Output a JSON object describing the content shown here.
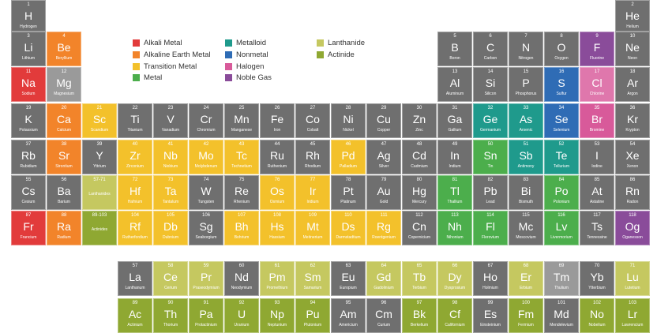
{
  "colors": {
    "alkali": "#e23b3b",
    "alkaline": "#f2842a",
    "transition": "#f3c12b",
    "metal": "#4cae4c",
    "metalloid": "#1f9a8c",
    "nonmetal": "#2f6cb5",
    "halogen": "#d85a9a",
    "noble": "#8a4c9a",
    "lanthanide": "#c5c860",
    "actinide": "#8fa832",
    "unknown": "#6f6f6f",
    "faded": "#9a9a9a"
  },
  "legend": [
    {
      "label": "Alkali Metal",
      "color": "alkali"
    },
    {
      "label": "Alkaline Earth Metal",
      "color": "alkaline"
    },
    {
      "label": "Transition Metal",
      "color": "transition"
    },
    {
      "label": "Metal",
      "color": "metal"
    },
    {
      "label": "Metalloid",
      "color": "metalloid"
    },
    {
      "label": "Nonmetal",
      "color": "nonmetal"
    },
    {
      "label": "Halogen",
      "color": "halogen"
    },
    {
      "label": "Noble Gas",
      "color": "noble"
    },
    {
      "label": "Lanthanide",
      "color": "lanthanide"
    },
    {
      "label": "Actinide",
      "color": "actinide"
    }
  ],
  "elements": [
    {
      "n": "1",
      "s": "H",
      "name": "Hydrogen",
      "c": "unknown",
      "r": 1,
      "col": 1
    },
    {
      "n": "2",
      "s": "He",
      "name": "Helium",
      "c": "unknown",
      "r": 1,
      "col": 18
    },
    {
      "n": "3",
      "s": "Li",
      "name": "Lithium",
      "c": "unknown",
      "r": 2,
      "col": 1
    },
    {
      "n": "4",
      "s": "Be",
      "name": "Beryllium",
      "c": "alkaline",
      "r": 2,
      "col": 2
    },
    {
      "n": "5",
      "s": "B",
      "name": "Boron",
      "c": "unknown",
      "r": 2,
      "col": 13
    },
    {
      "n": "6",
      "s": "C",
      "name": "Carbon",
      "c": "unknown",
      "r": 2,
      "col": 14
    },
    {
      "n": "7",
      "s": "N",
      "name": "Nitrogen",
      "c": "unknown",
      "r": 2,
      "col": 15
    },
    {
      "n": "8",
      "s": "O",
      "name": "Oxygen",
      "c": "unknown",
      "r": 2,
      "col": 16
    },
    {
      "n": "9",
      "s": "F",
      "name": "Fluorine",
      "c": "noble",
      "r": 2,
      "col": 17
    },
    {
      "n": "10",
      "s": "Ne",
      "name": "Neon",
      "c": "unknown",
      "r": 2,
      "col": 18
    },
    {
      "n": "11",
      "s": "Na",
      "name": "Sodium",
      "c": "alkali",
      "r": 3,
      "col": 1
    },
    {
      "n": "12",
      "s": "Mg",
      "name": "Magnesium",
      "c": "faded",
      "r": 3,
      "col": 2
    },
    {
      "n": "13",
      "s": "Al",
      "name": "Aluminum",
      "c": "unknown",
      "r": 3,
      "col": 13
    },
    {
      "n": "14",
      "s": "Si",
      "name": "Silicon",
      "c": "unknown",
      "r": 3,
      "col": 14
    },
    {
      "n": "15",
      "s": "P",
      "name": "Phosphorus",
      "c": "unknown",
      "r": 3,
      "col": 15
    },
    {
      "n": "16",
      "s": "S",
      "name": "Sulfur",
      "c": "nonmetal",
      "r": 3,
      "col": 16
    },
    {
      "n": "17",
      "s": "Cl",
      "name": "Chlorine",
      "c": "halogen",
      "r": 3,
      "col": 17,
      "faded": true
    },
    {
      "n": "18",
      "s": "Ar",
      "name": "Argon",
      "c": "unknown",
      "r": 3,
      "col": 18
    },
    {
      "n": "19",
      "s": "K",
      "name": "Potassium",
      "c": "unknown",
      "r": 4,
      "col": 1
    },
    {
      "n": "20",
      "s": "Ca",
      "name": "Calcium",
      "c": "alkaline",
      "r": 4,
      "col": 2
    },
    {
      "n": "21",
      "s": "Sc",
      "name": "Scandium",
      "c": "transition",
      "r": 4,
      "col": 3
    },
    {
      "n": "22",
      "s": "Ti",
      "name": "Titanium",
      "c": "unknown",
      "r": 4,
      "col": 4
    },
    {
      "n": "23",
      "s": "V",
      "name": "Vanadium",
      "c": "unknown",
      "r": 4,
      "col": 5
    },
    {
      "n": "24",
      "s": "Cr",
      "name": "Chromium",
      "c": "unknown",
      "r": 4,
      "col": 6
    },
    {
      "n": "25",
      "s": "Mn",
      "name": "Manganese",
      "c": "unknown",
      "r": 4,
      "col": 7
    },
    {
      "n": "26",
      "s": "Fe",
      "name": "Iron",
      "c": "unknown",
      "r": 4,
      "col": 8
    },
    {
      "n": "27",
      "s": "Co",
      "name": "Cobalt",
      "c": "unknown",
      "r": 4,
      "col": 9
    },
    {
      "n": "28",
      "s": "Ni",
      "name": "Nickel",
      "c": "unknown",
      "r": 4,
      "col": 10
    },
    {
      "n": "29",
      "s": "Cu",
      "name": "Copper",
      "c": "unknown",
      "r": 4,
      "col": 11
    },
    {
      "n": "30",
      "s": "Zn",
      "name": "Zinc",
      "c": "unknown",
      "r": 4,
      "col": 12
    },
    {
      "n": "31",
      "s": "Ga",
      "name": "Gallium",
      "c": "unknown",
      "r": 4,
      "col": 13
    },
    {
      "n": "32",
      "s": "Ge",
      "name": "Germanium",
      "c": "metalloid",
      "r": 4,
      "col": 14
    },
    {
      "n": "33",
      "s": "As",
      "name": "Arsenic",
      "c": "metalloid",
      "r": 4,
      "col": 15
    },
    {
      "n": "34",
      "s": "Se",
      "name": "Selenium",
      "c": "nonmetal",
      "r": 4,
      "col": 16
    },
    {
      "n": "35",
      "s": "Br",
      "name": "Bromine",
      "c": "halogen",
      "r": 4,
      "col": 17
    },
    {
      "n": "36",
      "s": "Kr",
      "name": "Krypton",
      "c": "unknown",
      "r": 4,
      "col": 18
    },
    {
      "n": "37",
      "s": "Rb",
      "name": "Rubidium",
      "c": "unknown",
      "r": 5,
      "col": 1
    },
    {
      "n": "38",
      "s": "Sr",
      "name": "Strontium",
      "c": "alkaline",
      "r": 5,
      "col": 2
    },
    {
      "n": "39",
      "s": "Y",
      "name": "Yttrium",
      "c": "unknown",
      "r": 5,
      "col": 3
    },
    {
      "n": "40",
      "s": "Zr",
      "name": "Zirconium",
      "c": "transition",
      "r": 5,
      "col": 4
    },
    {
      "n": "41",
      "s": "Nb",
      "name": "Niobium",
      "c": "transition",
      "r": 5,
      "col": 5
    },
    {
      "n": "42",
      "s": "Mo",
      "name": "Molybdenum",
      "c": "transition",
      "r": 5,
      "col": 6
    },
    {
      "n": "43",
      "s": "Tc",
      "name": "Technetium",
      "c": "transition",
      "r": 5,
      "col": 7
    },
    {
      "n": "44",
      "s": "Ru",
      "name": "Ruthenium",
      "c": "unknown",
      "r": 5,
      "col": 8
    },
    {
      "n": "45",
      "s": "Rh",
      "name": "Rhodium",
      "c": "unknown",
      "r": 5,
      "col": 9
    },
    {
      "n": "46",
      "s": "Pd",
      "name": "Palladium",
      "c": "transition",
      "r": 5,
      "col": 10
    },
    {
      "n": "47",
      "s": "Ag",
      "name": "Silver",
      "c": "unknown",
      "r": 5,
      "col": 11
    },
    {
      "n": "48",
      "s": "Cd",
      "name": "Cadmium",
      "c": "unknown",
      "r": 5,
      "col": 12
    },
    {
      "n": "49",
      "s": "In",
      "name": "Indium",
      "c": "unknown",
      "r": 5,
      "col": 13
    },
    {
      "n": "50",
      "s": "Sn",
      "name": "Tin",
      "c": "metal",
      "r": 5,
      "col": 14
    },
    {
      "n": "51",
      "s": "Sb",
      "name": "Antimony",
      "c": "metalloid",
      "r": 5,
      "col": 15
    },
    {
      "n": "52",
      "s": "Te",
      "name": "Tellurium",
      "c": "metalloid",
      "r": 5,
      "col": 16
    },
    {
      "n": "53",
      "s": "I",
      "name": "Iodine",
      "c": "unknown",
      "r": 5,
      "col": 17
    },
    {
      "n": "54",
      "s": "Xe",
      "name": "Xenon",
      "c": "unknown",
      "r": 5,
      "col": 18
    },
    {
      "n": "55",
      "s": "Cs",
      "name": "Cesium",
      "c": "unknown",
      "r": 6,
      "col": 1
    },
    {
      "n": "56",
      "s": "Ba",
      "name": "Barium",
      "c": "unknown",
      "r": 6,
      "col": 2
    },
    {
      "n": "57-71",
      "s": "",
      "name": "Lanthanides",
      "c": "lanthanide",
      "r": 6,
      "col": 3,
      "placeholder": true
    },
    {
      "n": "72",
      "s": "Hf",
      "name": "Hafnium",
      "c": "transition",
      "r": 6,
      "col": 4
    },
    {
      "n": "73",
      "s": "Ta",
      "name": "Tantalum",
      "c": "transition",
      "r": 6,
      "col": 5
    },
    {
      "n": "74",
      "s": "W",
      "name": "Tungsten",
      "c": "unknown",
      "r": 6,
      "col": 6
    },
    {
      "n": "75",
      "s": "Re",
      "name": "Rhenium",
      "c": "unknown",
      "r": 6,
      "col": 7
    },
    {
      "n": "76",
      "s": "Os",
      "name": "Osmium",
      "c": "transition",
      "r": 6,
      "col": 8
    },
    {
      "n": "77",
      "s": "Ir",
      "name": "Iridium",
      "c": "transition",
      "r": 6,
      "col": 9
    },
    {
      "n": "78",
      "s": "Pt",
      "name": "Platinum",
      "c": "unknown",
      "r": 6,
      "col": 10
    },
    {
      "n": "79",
      "s": "Au",
      "name": "Gold",
      "c": "unknown",
      "r": 6,
      "col": 11
    },
    {
      "n": "80",
      "s": "Hg",
      "name": "Mercury",
      "c": "unknown",
      "r": 6,
      "col": 12
    },
    {
      "n": "81",
      "s": "Tl",
      "name": "Thallium",
      "c": "metal",
      "r": 6,
      "col": 13
    },
    {
      "n": "82",
      "s": "Pb",
      "name": "Lead",
      "c": "unknown",
      "r": 6,
      "col": 14
    },
    {
      "n": "83",
      "s": "Bi",
      "name": "Bismuth",
      "c": "unknown",
      "r": 6,
      "col": 15
    },
    {
      "n": "84",
      "s": "Po",
      "name": "Polonium",
      "c": "metal",
      "r": 6,
      "col": 16
    },
    {
      "n": "85",
      "s": "At",
      "name": "Astatine",
      "c": "unknown",
      "r": 6,
      "col": 17
    },
    {
      "n": "86",
      "s": "Rn",
      "name": "Radon",
      "c": "unknown",
      "r": 6,
      "col": 18
    },
    {
      "n": "87",
      "s": "Fr",
      "name": "Francium",
      "c": "alkali",
      "r": 7,
      "col": 1
    },
    {
      "n": "88",
      "s": "Ra",
      "name": "Radium",
      "c": "alkaline",
      "r": 7,
      "col": 2
    },
    {
      "n": "89-103",
      "s": "",
      "name": "Actinides",
      "c": "actinide",
      "r": 7,
      "col": 3,
      "placeholder": true
    },
    {
      "n": "104",
      "s": "Rf",
      "name": "Rutherfordium",
      "c": "transition",
      "r": 7,
      "col": 4
    },
    {
      "n": "105",
      "s": "Db",
      "name": "Dubnium",
      "c": "transition",
      "r": 7,
      "col": 5
    },
    {
      "n": "106",
      "s": "Sg",
      "name": "Seaborgium",
      "c": "unknown",
      "r": 7,
      "col": 6
    },
    {
      "n": "107",
      "s": "Bh",
      "name": "Bohrium",
      "c": "transition",
      "r": 7,
      "col": 7
    },
    {
      "n": "108",
      "s": "Hs",
      "name": "Hassium",
      "c": "transition",
      "r": 7,
      "col": 8
    },
    {
      "n": "109",
      "s": "Mt",
      "name": "Meitnerium",
      "c": "transition",
      "r": 7,
      "col": 9
    },
    {
      "n": "110",
      "s": "Ds",
      "name": "Darmstadtium",
      "c": "transition",
      "r": 7,
      "col": 10
    },
    {
      "n": "111",
      "s": "Rg",
      "name": "Roentgenium",
      "c": "transition",
      "r": 7,
      "col": 11
    },
    {
      "n": "112",
      "s": "Cn",
      "name": "Copernicium",
      "c": "unknown",
      "r": 7,
      "col": 12
    },
    {
      "n": "113",
      "s": "Nh",
      "name": "Nihonium",
      "c": "metal",
      "r": 7,
      "col": 13
    },
    {
      "n": "114",
      "s": "Fl",
      "name": "Flerovium",
      "c": "metal",
      "r": 7,
      "col": 14
    },
    {
      "n": "115",
      "s": "Mc",
      "name": "Moscovium",
      "c": "unknown",
      "r": 7,
      "col": 15
    },
    {
      "n": "116",
      "s": "Lv",
      "name": "Livermorium",
      "c": "metal",
      "r": 7,
      "col": 16
    },
    {
      "n": "117",
      "s": "Ts",
      "name": "Tennessine",
      "c": "unknown",
      "r": 7,
      "col": 17
    },
    {
      "n": "118",
      "s": "Og",
      "name": "Oganesson",
      "c": "noble",
      "r": 7,
      "col": 18
    },
    {
      "n": "57",
      "s": "La",
      "name": "Lanthanum",
      "c": "unknown",
      "r": 8,
      "col": 4
    },
    {
      "n": "58",
      "s": "Ce",
      "name": "Cerium",
      "c": "lanthanide",
      "r": 8,
      "col": 5
    },
    {
      "n": "59",
      "s": "Pr",
      "name": "Praseodymium",
      "c": "lanthanide",
      "r": 8,
      "col": 6
    },
    {
      "n": "60",
      "s": "Nd",
      "name": "Neodymium",
      "c": "unknown",
      "r": 8,
      "col": 7
    },
    {
      "n": "61",
      "s": "Pm",
      "name": "Promethium",
      "c": "lanthanide",
      "r": 8,
      "col": 8
    },
    {
      "n": "62",
      "s": "Sm",
      "name": "Samarium",
      "c": "lanthanide",
      "r": 8,
      "col": 9
    },
    {
      "n": "63",
      "s": "Eu",
      "name": "Europium",
      "c": "unknown",
      "r": 8,
      "col": 10
    },
    {
      "n": "64",
      "s": "Gd",
      "name": "Gadolinium",
      "c": "lanthanide",
      "r": 8,
      "col": 11
    },
    {
      "n": "65",
      "s": "Tb",
      "name": "Terbium",
      "c": "lanthanide",
      "r": 8,
      "col": 12
    },
    {
      "n": "66",
      "s": "Dy",
      "name": "Dysprosium",
      "c": "lanthanide",
      "r": 8,
      "col": 13
    },
    {
      "n": "67",
      "s": "Ho",
      "name": "Holmium",
      "c": "unknown",
      "r": 8,
      "col": 14
    },
    {
      "n": "68",
      "s": "Er",
      "name": "Erbium",
      "c": "lanthanide",
      "r": 8,
      "col": 15
    },
    {
      "n": "69",
      "s": "Tm",
      "name": "Thulium",
      "c": "faded",
      "r": 8,
      "col": 16
    },
    {
      "n": "70",
      "s": "Yb",
      "name": "Ytterbium",
      "c": "unknown",
      "r": 8,
      "col": 17
    },
    {
      "n": "71",
      "s": "Lu",
      "name": "Lutetium",
      "c": "lanthanide",
      "r": 8,
      "col": 18
    },
    {
      "n": "89",
      "s": "Ac",
      "name": "Actinium",
      "c": "actinide",
      "r": 9,
      "col": 4
    },
    {
      "n": "90",
      "s": "Th",
      "name": "Thorium",
      "c": "actinide",
      "r": 9,
      "col": 5
    },
    {
      "n": "91",
      "s": "Pa",
      "name": "Protactinium",
      "c": "actinide",
      "r": 9,
      "col": 6
    },
    {
      "n": "92",
      "s": "U",
      "name": "Uranium",
      "c": "actinide",
      "r": 9,
      "col": 7
    },
    {
      "n": "93",
      "s": "Np",
      "name": "Neptunium",
      "c": "actinide",
      "r": 9,
      "col": 8
    },
    {
      "n": "94",
      "s": "Pu",
      "name": "Plutonium",
      "c": "actinide",
      "r": 9,
      "col": 9
    },
    {
      "n": "95",
      "s": "Am",
      "name": "Americium",
      "c": "unknown",
      "r": 9,
      "col": 10
    },
    {
      "n": "96",
      "s": "Cm",
      "name": "Curium",
      "c": "unknown",
      "r": 9,
      "col": 11
    },
    {
      "n": "97",
      "s": "Bk",
      "name": "Berkelium",
      "c": "actinide",
      "r": 9,
      "col": 12
    },
    {
      "n": "98",
      "s": "Cf",
      "name": "Californium",
      "c": "actinide",
      "r": 9,
      "col": 13
    },
    {
      "n": "99",
      "s": "Es",
      "name": "Einsteinium",
      "c": "unknown",
      "r": 9,
      "col": 14
    },
    {
      "n": "100",
      "s": "Fm",
      "name": "Fermium",
      "c": "actinide",
      "r": 9,
      "col": 15
    },
    {
      "n": "101",
      "s": "Md",
      "name": "Mendelevium",
      "c": "unknown",
      "r": 9,
      "col": 16
    },
    {
      "n": "102",
      "s": "No",
      "name": "Nobelium",
      "c": "actinide",
      "r": 9,
      "col": 17
    },
    {
      "n": "103",
      "s": "Lr",
      "name": "Lawrencium",
      "c": "actinide",
      "r": 9,
      "col": 18
    }
  ]
}
